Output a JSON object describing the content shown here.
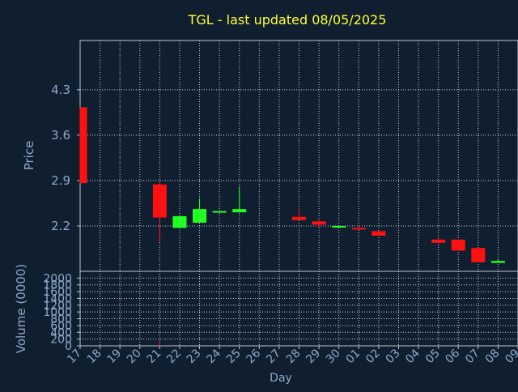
{
  "chart_data": {
    "type": "candlestick",
    "title": "TGL - last updated 08/05/2025",
    "xlabel": "Day",
    "ylabel": "Price",
    "volume_label": "Volume (0000)",
    "grid": true,
    "x_ticks": [
      "17",
      "18",
      "19",
      "20",
      "21",
      "22",
      "23",
      "24",
      "25",
      "26",
      "27",
      "28",
      "29",
      "30",
      "01",
      "02",
      "03",
      "04",
      "05",
      "06",
      "07",
      "08",
      "09"
    ],
    "price_ticks": [
      "4.3",
      "3.6",
      "2.9",
      "2.2"
    ],
    "price_tick_values": [
      4.3,
      3.6,
      2.9,
      2.2
    ],
    "ylim": [
      1.5,
      5.06
    ],
    "volume_ticks": [
      "2000",
      "1800",
      "1600",
      "1400",
      "1200",
      "1000",
      "800",
      "600",
      "400",
      "200",
      "0"
    ],
    "volume_tick_values": [
      2000,
      1800,
      1600,
      1400,
      1200,
      1000,
      800,
      600,
      400,
      200,
      0
    ],
    "volume_ylim": [
      0,
      2200
    ],
    "candles": [
      {
        "day": "17",
        "open": 4.03,
        "high": 4.03,
        "low": 2.86,
        "close": 2.86
      },
      {
        "day": "21",
        "open": 2.84,
        "high": 2.9,
        "low": 1.96,
        "close": 2.33
      },
      {
        "day": "22",
        "open": 2.17,
        "high": 2.37,
        "low": 2.17,
        "close": 2.35
      },
      {
        "day": "23",
        "open": 2.25,
        "high": 2.63,
        "low": 2.25,
        "close": 2.46
      },
      {
        "day": "24",
        "open": 2.41,
        "high": 2.44,
        "low": 2.41,
        "close": 2.43
      },
      {
        "day": "25",
        "open": 2.41,
        "high": 2.8,
        "low": 2.41,
        "close": 2.46
      },
      {
        "day": "28",
        "open": 2.34,
        "high": 2.47,
        "low": 2.29,
        "close": 2.29
      },
      {
        "day": "29",
        "open": 2.27,
        "high": 2.3,
        "low": 2.17,
        "close": 2.22
      },
      {
        "day": "30",
        "open": 2.18,
        "high": 2.2,
        "low": 2.17,
        "close": 2.2
      },
      {
        "day": "01",
        "open": 2.17,
        "high": 2.21,
        "low": 2.14,
        "close": 2.15
      },
      {
        "day": "02",
        "open": 2.12,
        "high": 2.12,
        "low": 2.05,
        "close": 2.05
      },
      {
        "day": "05",
        "open": 1.99,
        "high": 2.02,
        "low": 1.92,
        "close": 1.94
      },
      {
        "day": "06",
        "open": 1.99,
        "high": 1.99,
        "low": 1.82,
        "close": 1.82
      },
      {
        "day": "07",
        "open": 1.86,
        "high": 1.86,
        "low": 1.64,
        "close": 1.64
      },
      {
        "day": "08",
        "open": 1.63,
        "high": 1.68,
        "low": 1.63,
        "close": 1.66
      }
    ],
    "volumes": [
      {
        "day": "21",
        "value": 180
      }
    ],
    "colors": {
      "background": "#0f1f30",
      "axis": "#b8c4d0",
      "grid": "#c8d2dc",
      "title": "#ffff33",
      "label": "#8fa8c8",
      "up": "#22ff22",
      "down": "#ff1111"
    }
  }
}
